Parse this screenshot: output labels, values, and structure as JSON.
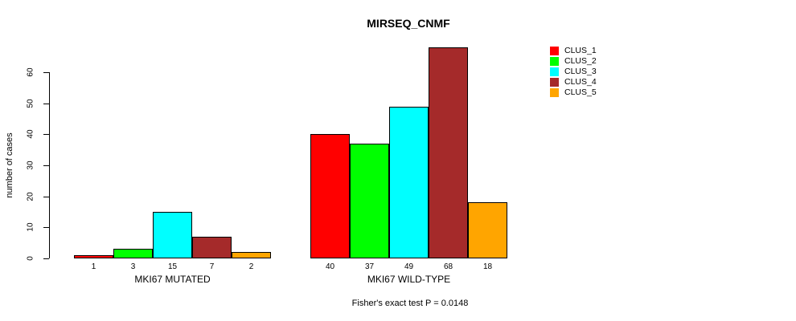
{
  "figure": {
    "title": "MIRSEQ_CNMF",
    "y_axis_label": "number of cases",
    "footer_note": "Fisher's exact test P = 0.0148"
  },
  "legend": {
    "items": [
      {
        "label": "CLUS_1",
        "color": "#ff0000"
      },
      {
        "label": "CLUS_2",
        "color": "#00ff00"
      },
      {
        "label": "CLUS_3",
        "color": "#00ffff"
      },
      {
        "label": "CLUS_4",
        "color": "#a52a2a"
      },
      {
        "label": "CLUS_5",
        "color": "#ffa500"
      }
    ]
  },
  "chart_data": {
    "type": "bar",
    "title": "MIRSEQ_CNMF",
    "ylabel": "number of cases",
    "xlabel": "",
    "ylim": [
      0,
      60
    ],
    "y_ticks": [
      0,
      10,
      20,
      30,
      40,
      50,
      60
    ],
    "grid": false,
    "legend_position": "top-right",
    "bar_borders": "#000000",
    "categories": [
      "MKI67 MUTATED",
      "MKI67 WILD-TYPE"
    ],
    "series": [
      {
        "name": "CLUS_1",
        "color": "#ff0000",
        "values": [
          1,
          40
        ]
      },
      {
        "name": "CLUS_2",
        "color": "#00ff00",
        "values": [
          3,
          37
        ]
      },
      {
        "name": "CLUS_3",
        "color": "#00ffff",
        "values": [
          15,
          49
        ]
      },
      {
        "name": "CLUS_4",
        "color": "#a52a2a",
        "values": [
          7,
          68
        ]
      },
      {
        "name": "CLUS_5",
        "color": "#ffa500",
        "values": [
          2,
          18
        ]
      }
    ],
    "bar_value_labels": [
      [
        "1",
        "3",
        "15",
        "7",
        "2"
      ],
      [
        "40",
        "37",
        "49",
        "68",
        "18"
      ]
    ],
    "annotation": "Fisher's exact test P = 0.0148"
  }
}
